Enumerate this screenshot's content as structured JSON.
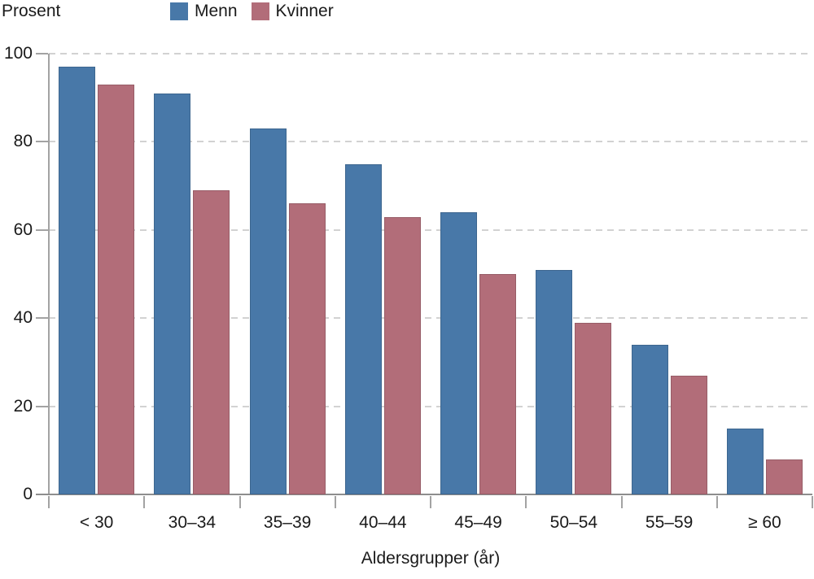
{
  "chart_data": {
    "type": "bar",
    "title": "",
    "ylabel_unit": "Prosent",
    "xlabel": "Aldersgrupper (år)",
    "categories": [
      "< 30",
      "30–34",
      "35–39",
      "40–44",
      "45–49",
      "50–54",
      "55–59",
      "≥ 60"
    ],
    "series": [
      {
        "name": "Menn",
        "color": "#4878a8",
        "values": [
          97,
          91,
          83,
          75,
          64,
          51,
          34,
          15
        ]
      },
      {
        "name": "Kvinner",
        "color": "#b26d79",
        "values": [
          93,
          69,
          66,
          63,
          50,
          39,
          27,
          8
        ]
      }
    ],
    "ylim": [
      0,
      100
    ],
    "yticks": [
      0,
      20,
      40,
      60,
      80,
      100
    ],
    "grid": "dashed-horizontal",
    "legend_position": "top"
  }
}
